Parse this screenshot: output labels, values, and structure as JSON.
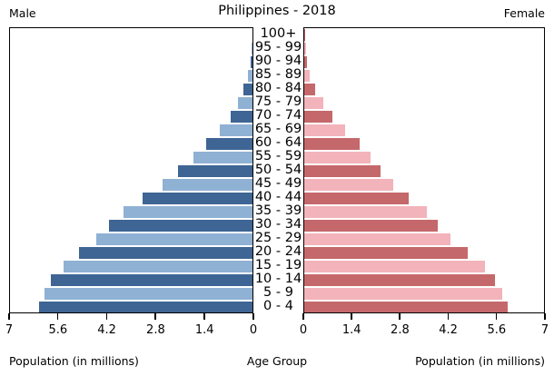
{
  "header": {
    "left_label": "Male",
    "right_label": "Female"
  },
  "chart_data": {
    "type": "bar",
    "variant": "population-pyramid",
    "orientation": "horizontal",
    "title": "Philippines - 2018",
    "grid": false,
    "center_axis_label": "Age Group",
    "age_groups": [
      "100+",
      "95 - 99",
      "90 - 94",
      "85 - 89",
      "80 - 84",
      "75 - 79",
      "70 - 74",
      "65 - 69",
      "60 - 64",
      "55 - 59",
      "50 - 54",
      "45 - 49",
      "40 - 44",
      "35 - 39",
      "30 - 34",
      "25 - 29",
      "20 - 24",
      "15 - 19",
      "10 - 14",
      "5 - 9",
      "0 - 4"
    ],
    "series": [
      {
        "name": "Male",
        "side": "left",
        "color_dark": "#3E6594",
        "color_light": "#8FB1D4",
        "values": [
          0.01,
          0.02,
          0.05,
          0.14,
          0.26,
          0.43,
          0.63,
          0.94,
          1.34,
          1.71,
          2.14,
          2.59,
          3.17,
          3.73,
          4.15,
          4.52,
          5.0,
          5.45,
          5.81,
          6.01,
          6.15
        ]
      },
      {
        "name": "Female",
        "side": "right",
        "color_dark": "#C5686B",
        "color_light": "#F3B3BA",
        "values": [
          0.02,
          0.04,
          0.08,
          0.16,
          0.31,
          0.56,
          0.82,
          1.19,
          1.63,
          1.93,
          2.24,
          2.59,
          3.04,
          3.59,
          3.9,
          4.27,
          4.78,
          5.27,
          5.58,
          5.78,
          5.93
        ]
      }
    ],
    "x_axis": {
      "label": "Population (in millions)",
      "max": 7,
      "ticks_left": [
        7,
        5.6,
        4.2,
        2.8,
        1.4,
        0
      ],
      "ticks_right": [
        0,
        1.4,
        2.8,
        4.2,
        5.6,
        7
      ]
    }
  }
}
